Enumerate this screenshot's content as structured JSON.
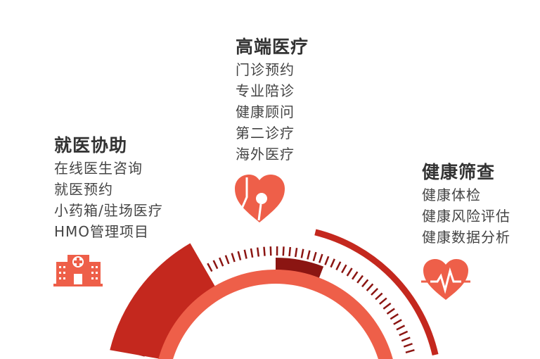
{
  "colors": {
    "coral": "#ee5f49",
    "red": "#c4281e",
    "dark_red": "#8b1512"
  },
  "sections": [
    {
      "title": "就医协助",
      "icon": "hospital-icon",
      "items": [
        "在线医生咨询",
        "就医预约",
        "小药箱/驻场医疗",
        "HMO管理项目"
      ]
    },
    {
      "title": "高端医疗",
      "icon": "heart-pin-icon",
      "items": [
        "门诊预约",
        "专业陪诊",
        "健康顾问",
        "第二诊疗",
        "海外医疗"
      ]
    },
    {
      "title": "健康筛查",
      "icon": "heart-ecg-icon",
      "items": [
        "健康体检",
        "健康风险评估",
        "健康数据分析"
      ]
    }
  ]
}
